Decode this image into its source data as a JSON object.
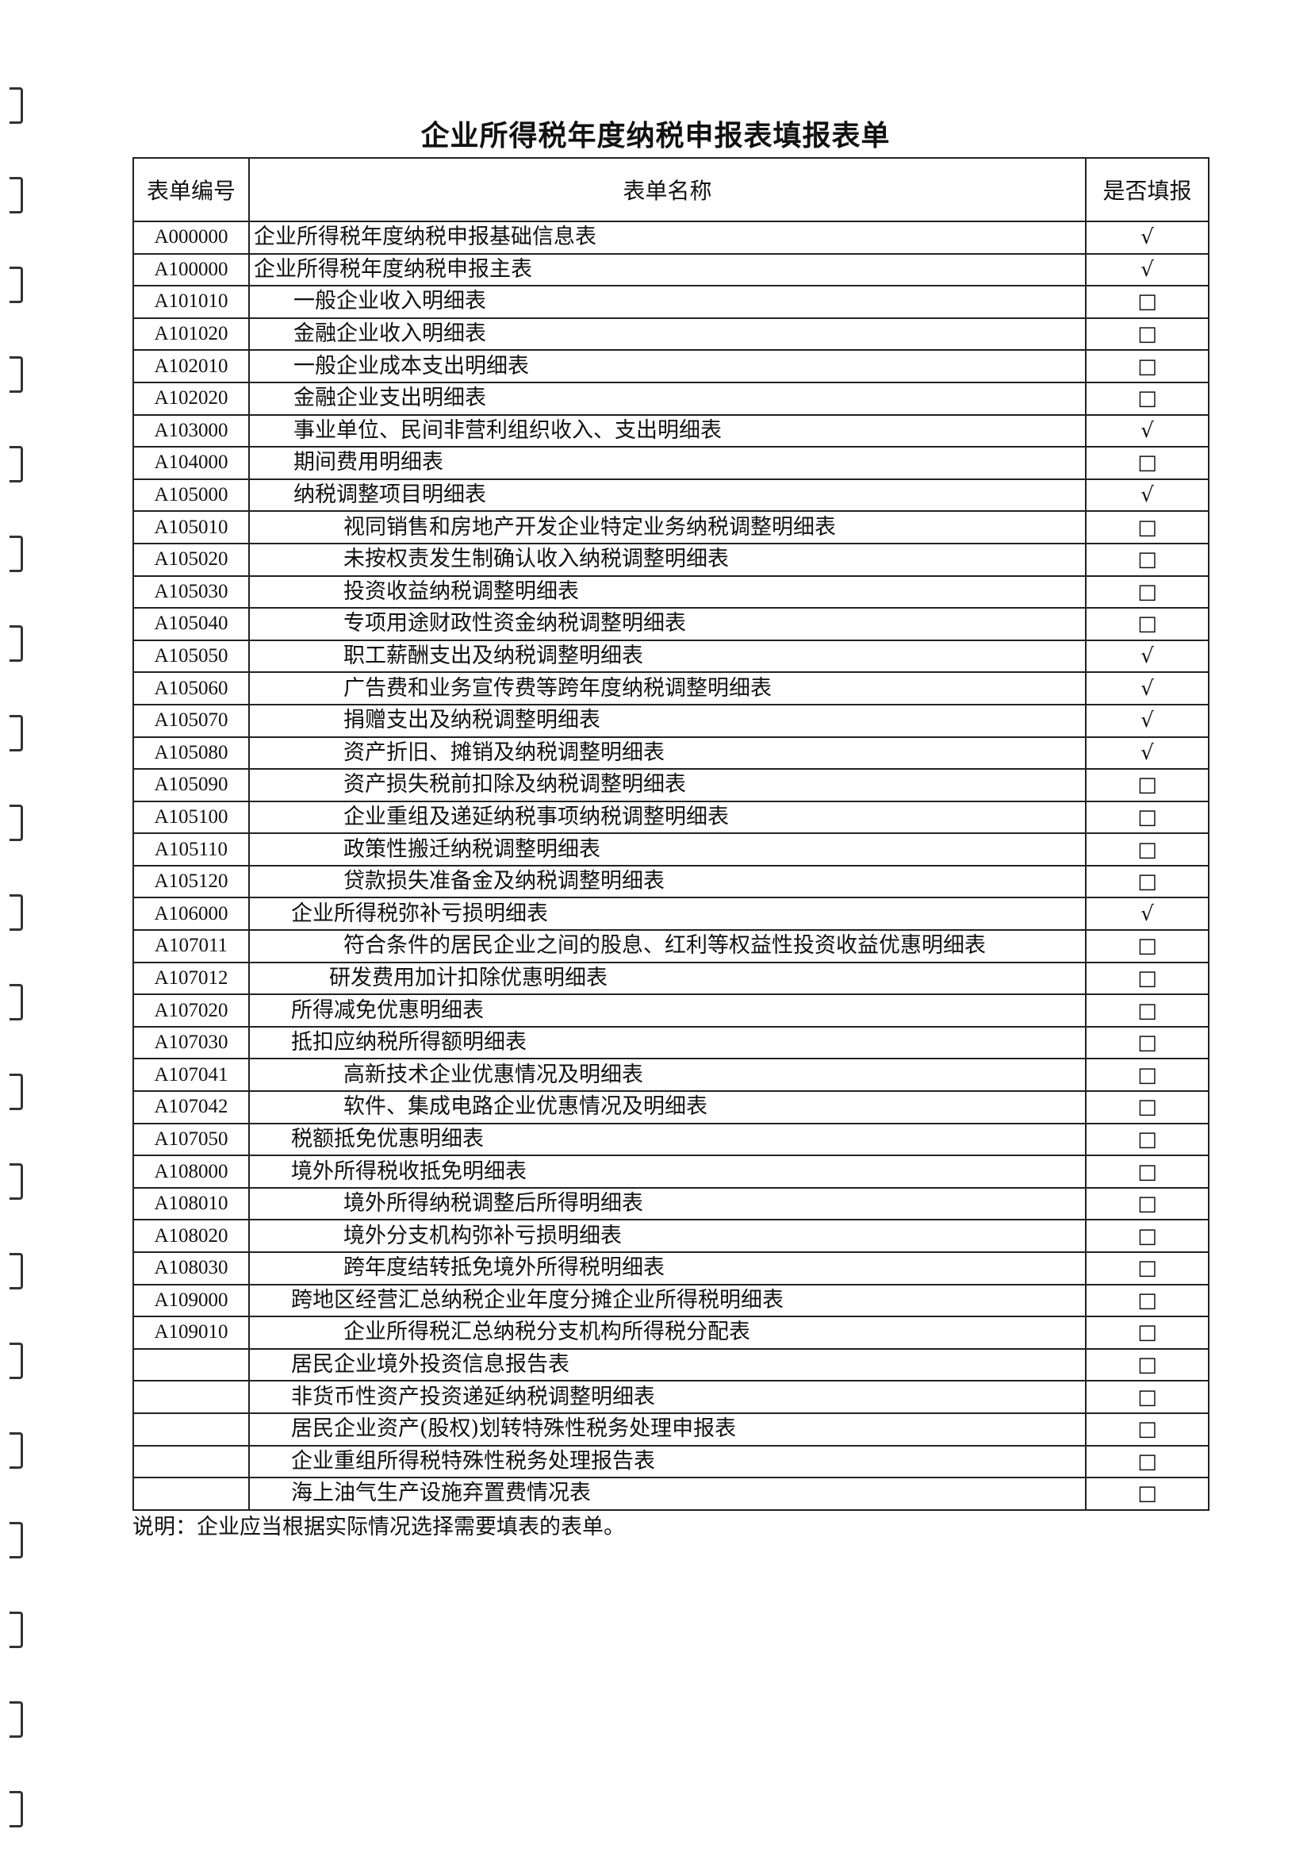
{
  "title": "企业所得税年度纳税申报表填报表单",
  "headers": {
    "code": "表单编号",
    "name": "表单名称",
    "filled": "是否填报"
  },
  "marks": {
    "checked": "√",
    "unchecked": "□"
  },
  "rows": [
    {
      "code": "A000000",
      "name": "企业所得税年度纳税申报基础信息表",
      "level": 0,
      "mark": "√"
    },
    {
      "code": "A100000",
      "name": "企业所得税年度纳税申报主表",
      "level": 0,
      "mark": "√"
    },
    {
      "code": "A101010",
      "name": "一般企业收入明细表",
      "level": 1,
      "mark": "□"
    },
    {
      "code": "A101020",
      "name": "金融企业收入明细表",
      "level": 1,
      "mark": "□"
    },
    {
      "code": "A102010",
      "name": "一般企业成本支出明细表",
      "level": 1,
      "mark": "□"
    },
    {
      "code": "A102020",
      "name": "金融企业支出明细表",
      "level": 1,
      "mark": "□"
    },
    {
      "code": "A103000",
      "name": "事业单位、民间非营利组织收入、支出明细表",
      "level": 1,
      "mark": "√"
    },
    {
      "code": "A104000",
      "name": "期间费用明细表",
      "level": 1,
      "mark": "□"
    },
    {
      "code": "A105000",
      "name": "纳税调整项目明细表",
      "level": 1,
      "mark": "√"
    },
    {
      "code": "A105010",
      "name": "视同销售和房地产开发企业特定业务纳税调整明细表",
      "level": 2,
      "mark": "□"
    },
    {
      "code": "A105020",
      "name": "未按权责发生制确认收入纳税调整明细表",
      "level": 2,
      "mark": "□"
    },
    {
      "code": "A105030",
      "name": "投资收益纳税调整明细表",
      "level": 2,
      "mark": "□"
    },
    {
      "code": "A105040",
      "name": "专项用途财政性资金纳税调整明细表",
      "level": 2,
      "mark": "□"
    },
    {
      "code": "A105050",
      "name": "职工薪酬支出及纳税调整明细表",
      "level": 2,
      "mark": "√"
    },
    {
      "code": "A105060",
      "name": "广告费和业务宣传费等跨年度纳税调整明细表",
      "level": 2,
      "mark": "√"
    },
    {
      "code": "A105070",
      "name": "捐赠支出及纳税调整明细表",
      "level": 2,
      "mark": "√"
    },
    {
      "code": "A105080",
      "name": "资产折旧、摊销及纳税调整明细表",
      "level": 2,
      "mark": "√"
    },
    {
      "code": "A105090",
      "name": "资产损失税前扣除及纳税调整明细表",
      "level": 2,
      "mark": "□"
    },
    {
      "code": "A105100",
      "name": "企业重组及递延纳税事项纳税调整明细表",
      "level": 2,
      "mark": "□"
    },
    {
      "code": "A105110",
      "name": "政策性搬迁纳税调整明细表",
      "level": 2,
      "mark": "□"
    },
    {
      "code": "A105120",
      "name": "贷款损失准备金及纳税调整明细表",
      "level": 2,
      "mark": "□"
    },
    {
      "code": "A106000",
      "name": "企业所得税弥补亏损明细表",
      "level": 1,
      "mark": "√"
    },
    {
      "code": "A107011",
      "name": "符合条件的居民企业之间的股息、红利等权益性投资收益优惠明细表",
      "level": 2,
      "mark": "□"
    },
    {
      "code": "A107012",
      "name": "研发费用加计扣除优惠明细表",
      "level": 2,
      "mark": "□"
    },
    {
      "code": "A107020",
      "name": "所得减免优惠明细表",
      "level": 1,
      "mark": "□"
    },
    {
      "code": "A107030",
      "name": "抵扣应纳税所得额明细表",
      "level": 1,
      "mark": "□"
    },
    {
      "code": "A107041",
      "name": "高新技术企业优惠情况及明细表",
      "level": 2,
      "mark": "□"
    },
    {
      "code": "A107042",
      "name": "软件、集成电路企业优惠情况及明细表",
      "level": 2,
      "mark": "□"
    },
    {
      "code": "A107050",
      "name": "税额抵免优惠明细表",
      "level": 1,
      "mark": "□"
    },
    {
      "code": "A108000",
      "name": "境外所得税收抵免明细表",
      "level": 1,
      "mark": "□"
    },
    {
      "code": "A108010",
      "name": "境外所得纳税调整后所得明细表",
      "level": 2,
      "mark": "□"
    },
    {
      "code": "A108020",
      "name": "境外分支机构弥补亏损明细表",
      "level": 2,
      "mark": "□"
    },
    {
      "code": "A108030",
      "name": "跨年度结转抵免境外所得税明细表",
      "level": 2,
      "mark": "□"
    },
    {
      "code": "A109000",
      "name": "跨地区经营汇总纳税企业年度分摊企业所得税明细表",
      "level": 1,
      "mark": "□"
    },
    {
      "code": "A109010",
      "name": "企业所得税汇总纳税分支机构所得税分配表",
      "level": 2,
      "mark": "□"
    },
    {
      "code": "",
      "name": "居民企业境外投资信息报告表",
      "level": 1,
      "mark": "□"
    },
    {
      "code": "",
      "name": "非货币性资产投资递延纳税调整明细表",
      "level": 1,
      "mark": "□"
    },
    {
      "code": "",
      "name": "居民企业资产(股权)划转特殊性税务处理申报表",
      "level": 1,
      "mark": "□"
    },
    {
      "code": "",
      "name": "企业重组所得税特殊性税务处理报告表",
      "level": 1,
      "mark": "□"
    },
    {
      "code": "",
      "name": "海上油气生产设施弃置费情况表",
      "level": 1,
      "mark": "□"
    }
  ],
  "note": "说明：企业应当根据实际情况选择需要填表的表单。"
}
